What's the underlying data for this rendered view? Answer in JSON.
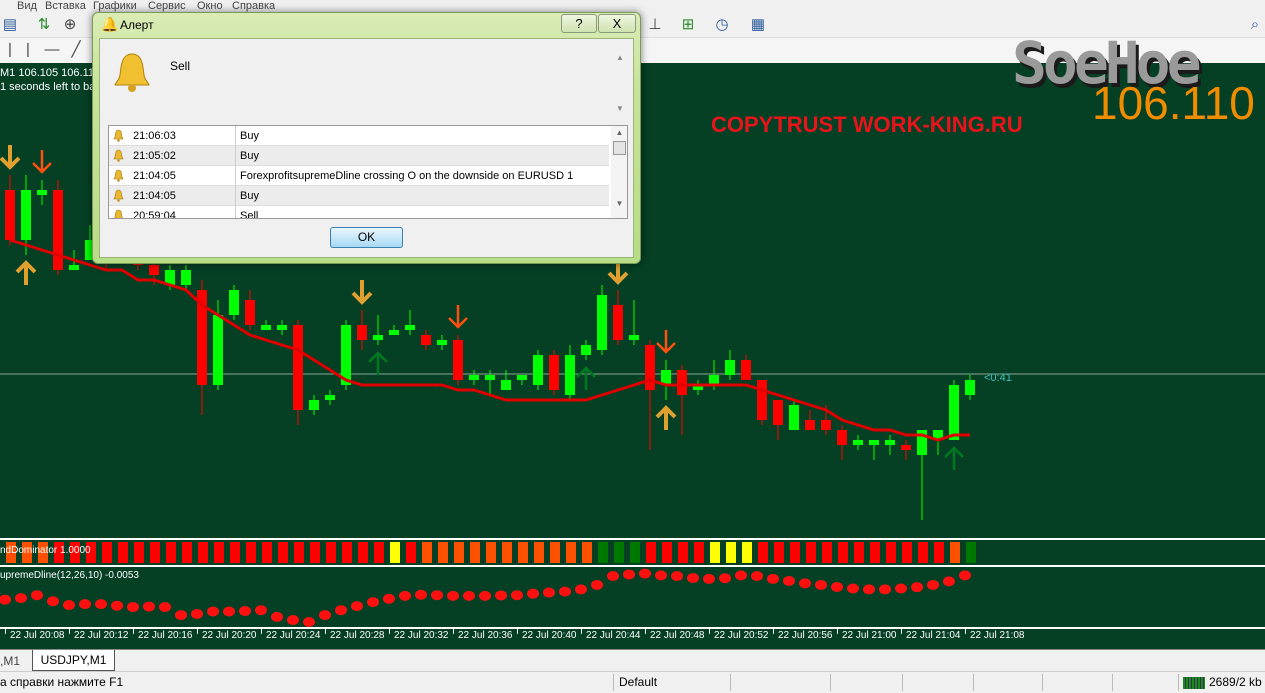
{
  "menu": [
    "Вид",
    "Вставка",
    "Графики",
    "Сервис",
    "Окно",
    "Справка"
  ],
  "chart_header": {
    "line1": "M1  106.105 106.110",
    "line2": "1 seconds left to bar e"
  },
  "watermark": {
    "copytrust": "COPYTRUST WORK-KING.RU",
    "logo": "SoeHoe",
    "bid": "106.110",
    "timer": "<0:41"
  },
  "colors": {
    "background": "#053f24",
    "bull": "#00ff00",
    "bear": "#ff0000",
    "ma": "#e00000",
    "sell_arrow": "#ff5010",
    "gold_arrow": "#e0a030",
    "buy_arrow": "#007a20",
    "bid_text": "#f08c00",
    "timer_text": "#40c0c0"
  },
  "alert": {
    "title": "Алерт",
    "message": "Sell",
    "ok_label": "OK",
    "help_label": "?",
    "close_label": "X",
    "rows": [
      {
        "time": "21:06:03",
        "text": "Buy"
      },
      {
        "time": "21:05:02",
        "text": "Buy"
      },
      {
        "time": "21:04:05",
        "text": "ForexprofitsupremeDline crossing O on the downside on EURUSD 1"
      },
      {
        "time": "21:04:05",
        "text": "Buy"
      },
      {
        "time": "20:59:04",
        "text": "Sell"
      }
    ]
  },
  "indicators": {
    "trend_label": "ndDominator 1.0000",
    "osc_label": "upremeDline(12,26,10) -0.0053"
  },
  "chart_data": {
    "type": "candlestick",
    "timeframe": "M1",
    "time_labels": [
      "22 Jul 20:08",
      "22 Jul 20:12",
      "22 Jul 20:16",
      "22 Jul 20:20",
      "22 Jul 20:24",
      "22 Jul 20:28",
      "22 Jul 20:32",
      "22 Jul 20:36",
      "22 Jul 20:40",
      "22 Jul 20:44",
      "22 Jul 20:48",
      "22 Jul 20:52",
      "22 Jul 20:56",
      "22 Jul 21:00",
      "22 Jul 21:04",
      "22 Jul 21:08"
    ],
    "candles_ochl": [
      [
        106.148,
        106.138,
        106.151,
        106.137
      ],
      [
        106.138,
        106.148,
        106.151,
        106.135
      ],
      [
        106.147,
        106.148,
        106.15,
        106.145
      ],
      [
        106.148,
        106.132,
        106.15,
        106.131
      ],
      [
        106.132,
        106.133,
        106.136,
        106.132
      ],
      [
        106.134,
        106.138,
        106.141,
        106.134
      ],
      [
        106.138,
        106.135,
        106.142,
        106.132
      ],
      [
        106.135,
        106.138,
        106.14,
        106.134
      ],
      [
        106.138,
        106.133,
        106.14,
        106.132
      ],
      [
        106.133,
        106.131,
        106.135,
        106.129
      ],
      [
        106.129,
        106.132,
        106.133,
        106.128
      ],
      [
        106.129,
        106.132,
        106.133,
        106.128
      ],
      [
        106.128,
        106.109,
        106.13,
        106.103
      ],
      [
        106.109,
        106.123,
        106.126,
        106.108
      ],
      [
        106.123,
        106.128,
        106.129,
        106.122
      ],
      [
        106.126,
        106.121,
        106.128,
        106.12
      ],
      [
        106.12,
        106.121,
        106.122,
        106.12
      ],
      [
        106.12,
        106.121,
        106.122,
        106.119
      ],
      [
        106.121,
        106.104,
        106.122,
        106.101
      ],
      [
        106.104,
        106.106,
        106.107,
        106.103
      ],
      [
        106.106,
        106.107,
        106.108,
        106.105
      ],
      [
        106.109,
        106.121,
        106.122,
        106.108
      ],
      [
        106.121,
        106.118,
        106.124,
        106.116
      ],
      [
        106.118,
        106.119,
        106.123,
        106.117
      ],
      [
        106.119,
        106.12,
        106.121,
        106.119
      ],
      [
        106.12,
        106.121,
        106.124,
        106.119
      ],
      [
        106.119,
        106.117,
        106.12,
        106.116
      ],
      [
        106.117,
        106.118,
        106.119,
        106.116
      ],
      [
        106.118,
        106.11,
        106.119,
        106.109
      ],
      [
        106.11,
        106.111,
        106.112,
        106.109
      ],
      [
        106.11,
        106.111,
        106.112,
        106.107
      ],
      [
        106.108,
        106.11,
        106.112,
        106.108
      ],
      [
        106.11,
        106.111,
        106.111,
        106.109
      ],
      [
        106.109,
        106.115,
        106.116,
        106.108
      ],
      [
        106.115,
        106.108,
        106.116,
        106.107
      ],
      [
        106.107,
        106.115,
        106.117,
        106.106
      ],
      [
        106.115,
        106.117,
        106.118,
        106.114
      ],
      [
        106.116,
        106.127,
        106.129,
        106.115
      ],
      [
        106.125,
        106.118,
        106.128,
        106.117
      ],
      [
        106.118,
        106.119,
        106.126,
        106.117
      ],
      [
        106.117,
        106.108,
        106.118,
        106.096
      ],
      [
        106.109,
        106.112,
        106.114,
        106.106
      ],
      [
        106.112,
        106.107,
        106.113,
        106.099
      ],
      [
        106.108,
        106.109,
        106.11,
        106.107
      ],
      [
        106.109,
        106.111,
        106.114,
        106.108
      ],
      [
        106.111,
        106.114,
        106.116,
        106.11
      ],
      [
        106.114,
        106.11,
        106.115,
        106.11
      ],
      [
        106.11,
        106.102,
        106.11,
        106.101
      ],
      [
        106.106,
        106.101,
        106.106,
        106.098
      ],
      [
        106.1,
        106.105,
        106.106,
        106.1
      ],
      [
        106.102,
        106.1,
        106.104,
        106.1
      ],
      [
        106.102,
        106.1,
        106.105,
        106.099
      ],
      [
        106.1,
        106.097,
        106.101,
        106.094
      ],
      [
        106.097,
        106.098,
        106.099,
        106.096
      ],
      [
        106.097,
        106.098,
        106.098,
        106.094
      ],
      [
        106.097,
        106.098,
        106.099,
        106.095
      ],
      [
        106.097,
        106.096,
        106.098,
        106.094
      ],
      [
        106.095,
        106.1,
        106.1,
        106.082
      ],
      [
        106.098,
        106.1,
        106.1,
        106.095
      ],
      [
        106.098,
        106.109,
        106.11,
        106.098
      ],
      [
        106.107,
        106.11,
        106.111,
        106.106
      ]
    ],
    "moving_average": [
      106.138,
      106.137,
      106.136,
      106.135,
      106.134,
      106.133,
      106.132,
      106.132,
      106.13,
      106.13,
      106.129,
      106.128,
      106.125,
      106.123,
      106.121,
      106.119,
      106.118,
      106.117,
      106.116,
      106.114,
      106.112,
      106.11,
      106.109,
      106.109,
      106.109,
      106.109,
      106.109,
      106.109,
      106.108,
      106.108,
      106.107,
      106.106,
      106.106,
      106.106,
      106.106,
      106.106,
      106.106,
      106.107,
      106.108,
      106.109,
      106.11,
      106.109,
      106.109,
      106.109,
      106.109,
      106.109,
      106.109,
      106.108,
      106.107,
      106.106,
      106.105,
      106.104,
      106.102,
      106.101,
      106.1,
      106.1,
      106.099,
      106.099,
      106.098,
      106.099,
      106.099
    ],
    "signals": [
      {
        "bar": 0,
        "type": "gold-down"
      },
      {
        "bar": 2,
        "type": "sell-down"
      },
      {
        "bar": 1,
        "type": "gold-up"
      },
      {
        "bar": 22,
        "type": "gold-down"
      },
      {
        "bar": 23,
        "type": "buy-up"
      },
      {
        "bar": 28,
        "type": "sell-down"
      },
      {
        "bar": 36,
        "type": "buy-up"
      },
      {
        "bar": 38,
        "type": "gold-down"
      },
      {
        "bar": 41,
        "type": "sell-down"
      },
      {
        "bar": 41,
        "type": "gold-up"
      },
      {
        "bar": 59,
        "type": "buy-up"
      }
    ],
    "bid": 106.11,
    "trend_dominator_colors": [
      "orange",
      "orange",
      "orange",
      "red",
      "red",
      "red",
      "red",
      "red",
      "red",
      "red",
      "red",
      "red",
      "red",
      "red",
      "red",
      "red",
      "red",
      "red",
      "red",
      "red",
      "red",
      "red",
      "red",
      "red",
      "yellow",
      "red",
      "orange",
      "orange",
      "orange",
      "orange",
      "orange",
      "orange",
      "orange",
      "orange",
      "orange",
      "orange",
      "orange",
      "green",
      "green",
      "green",
      "red",
      "red",
      "red",
      "red",
      "yellow",
      "yellow",
      "yellow",
      "red",
      "red",
      "red",
      "red",
      "red",
      "red",
      "red",
      "red",
      "red",
      "red",
      "red",
      "red",
      "orange",
      "green"
    ],
    "supreme_dline": [
      -0.0162,
      -0.0155,
      -0.0142,
      -0.0169,
      -0.0186,
      -0.0182,
      -0.0182,
      -0.0189,
      -0.0195,
      -0.0193,
      -0.0195,
      -0.0231,
      -0.0226,
      -0.0215,
      -0.0215,
      -0.0213,
      -0.0209,
      -0.0239,
      -0.0253,
      -0.0262,
      -0.0231,
      -0.0209,
      -0.0191,
      -0.0173,
      -0.0158,
      -0.0145,
      -0.014,
      -0.0142,
      -0.0145,
      -0.0145,
      -0.0145,
      -0.0143,
      -0.0142,
      -0.0135,
      -0.013,
      -0.0126,
      -0.0116,
      -0.0096,
      -0.0056,
      -0.0049,
      -0.0045,
      -0.0053,
      -0.0056,
      -0.0065,
      -0.0069,
      -0.0066,
      -0.0053,
      -0.0056,
      -0.0069,
      -0.0078,
      -0.0089,
      -0.0096,
      -0.0105,
      -0.0112,
      -0.0116,
      -0.0116,
      -0.0112,
      -0.0106,
      -0.0096,
      -0.008,
      -0.0053
    ]
  },
  "tabs": [
    {
      "label": ",M1",
      "active": false
    },
    {
      "label": "USDJPY,M1",
      "active": true
    }
  ],
  "status": {
    "help": "а справки нажмите F1",
    "profile": "Default",
    "traffic": "2689/2 kb"
  }
}
